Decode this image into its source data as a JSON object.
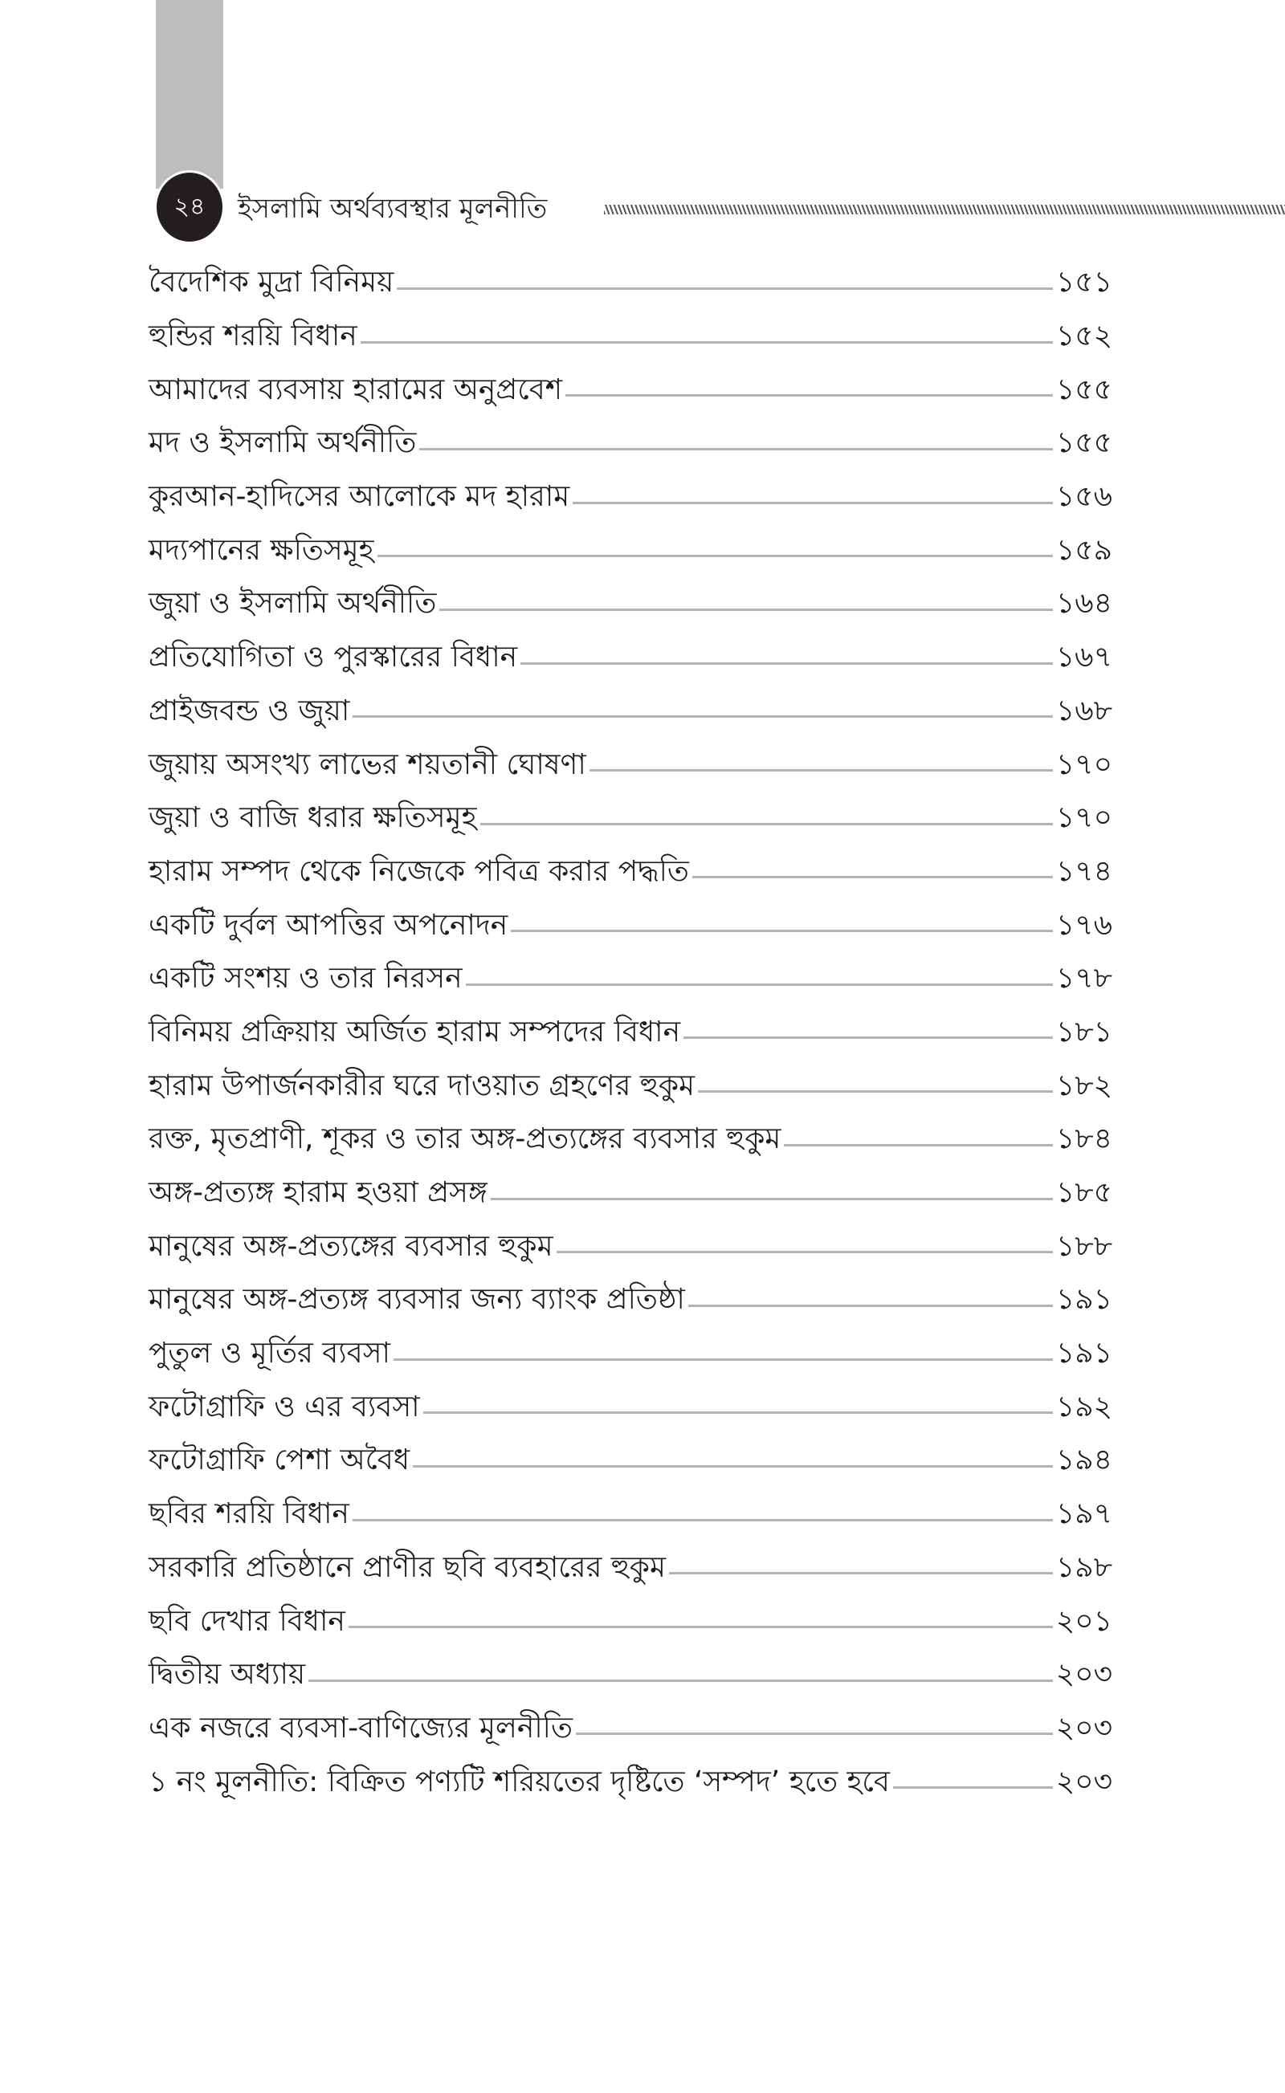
{
  "header": {
    "page_number": "২৪",
    "running_title": "ইসলামি অর্থব্যবস্থার মূলনীতি"
  },
  "toc": [
    {
      "title": "বৈদেশিক মুদ্রা বিনিময়",
      "page": "১৫১"
    },
    {
      "title": "হুন্ডির শরয়ি বিধান",
      "page": "১৫২"
    },
    {
      "title": "আমাদের ব্যবসায় হারামের অনুপ্রবেশ",
      "page": "১৫৫"
    },
    {
      "title": "মদ ও ইসলামি অর্থনীতি",
      "page": "১৫৫"
    },
    {
      "title": "কুরআন-হাদিসের আলোকে মদ হারাম",
      "page": "১৫৬"
    },
    {
      "title": "মদ্যপানের ক্ষতিসমূহ",
      "page": "১৫৯"
    },
    {
      "title": "জুয়া ও ইসলামি অর্থনীতি",
      "page": "১৬৪"
    },
    {
      "title": "প্রতিযোগিতা ও পুরস্কারের বিধান",
      "page": "১৬৭"
    },
    {
      "title": "প্রাইজবন্ড ও জুয়া",
      "page": "১৬৮"
    },
    {
      "title": "জুয়ায় অসংখ্য লাভের শয়তানী ঘোষণা",
      "page": "১৭০"
    },
    {
      "title": "জুয়া ও বাজি ধরার ক্ষতিসমূহ",
      "page": "১৭০"
    },
    {
      "title": "হারাম সম্পদ থেকে নিজেকে পবিত্র করার পদ্ধতি",
      "page": "১৭৪"
    },
    {
      "title": "একটি দুর্বল আপত্তির অপনোদন",
      "page": "১৭৬"
    },
    {
      "title": "একটি সংশয় ও তার নিরসন",
      "page": "১৭৮"
    },
    {
      "title": "বিনিময় প্রক্রিয়ায় অর্জিত হারাম সম্পদের বিধান",
      "page": "১৮১"
    },
    {
      "title": "হারাম উপার্জনকারীর ঘরে দাওয়াত গ্রহণের হুকুম",
      "page": "১৮২"
    },
    {
      "title": "রক্ত, মৃতপ্রাণী, শূকর ও তার অঙ্গ-প্রত্যঙ্গের ব্যবসার হুকুম",
      "page": "১৮৪"
    },
    {
      "title": "অঙ্গ-প্রত্যঙ্গ হারাম হওয়া প্রসঙ্গ",
      "page": "১৮৫"
    },
    {
      "title": "মানুষের অঙ্গ-প্রত্যঙ্গের ব্যবসার হুকুম",
      "page": "১৮৮"
    },
    {
      "title": "মানুষের অঙ্গ-প্রত্যঙ্গ ব্যবসার জন্য ব্যাংক প্রতিষ্ঠা",
      "page": "১৯১"
    },
    {
      "title": "পুতুল ও মূর্তির ব্যবসা",
      "page": "১৯১"
    },
    {
      "title": "ফটোগ্রাফি ও এর ব্যবসা",
      "page": "১৯২"
    },
    {
      "title": "ফটোগ্রাফি পেশা অবৈধ",
      "page": "১৯৪"
    },
    {
      "title": "ছবির শরয়ি বিধান",
      "page": "১৯৭"
    },
    {
      "title": "সরকারি প্রতিষ্ঠানে প্রাণীর ছবি ব্যবহারের হুকুম",
      "page": "১৯৮"
    },
    {
      "title": "ছবি দেখার বিধান",
      "page": "২০১"
    },
    {
      "title": "দ্বিতীয় অধ্যায়",
      "page": "২০৩"
    },
    {
      "title": "এক নজরে ব্যবসা-বাণিজ্যের মূলনীতি",
      "page": "২০৩"
    },
    {
      "title": "১ নং মূলনীতি: বিক্রিত পণ্যটি শরিয়তের দৃষ্টিতে ‘সম্পদ’ হতে হবে",
      "page": "২০৩"
    }
  ]
}
